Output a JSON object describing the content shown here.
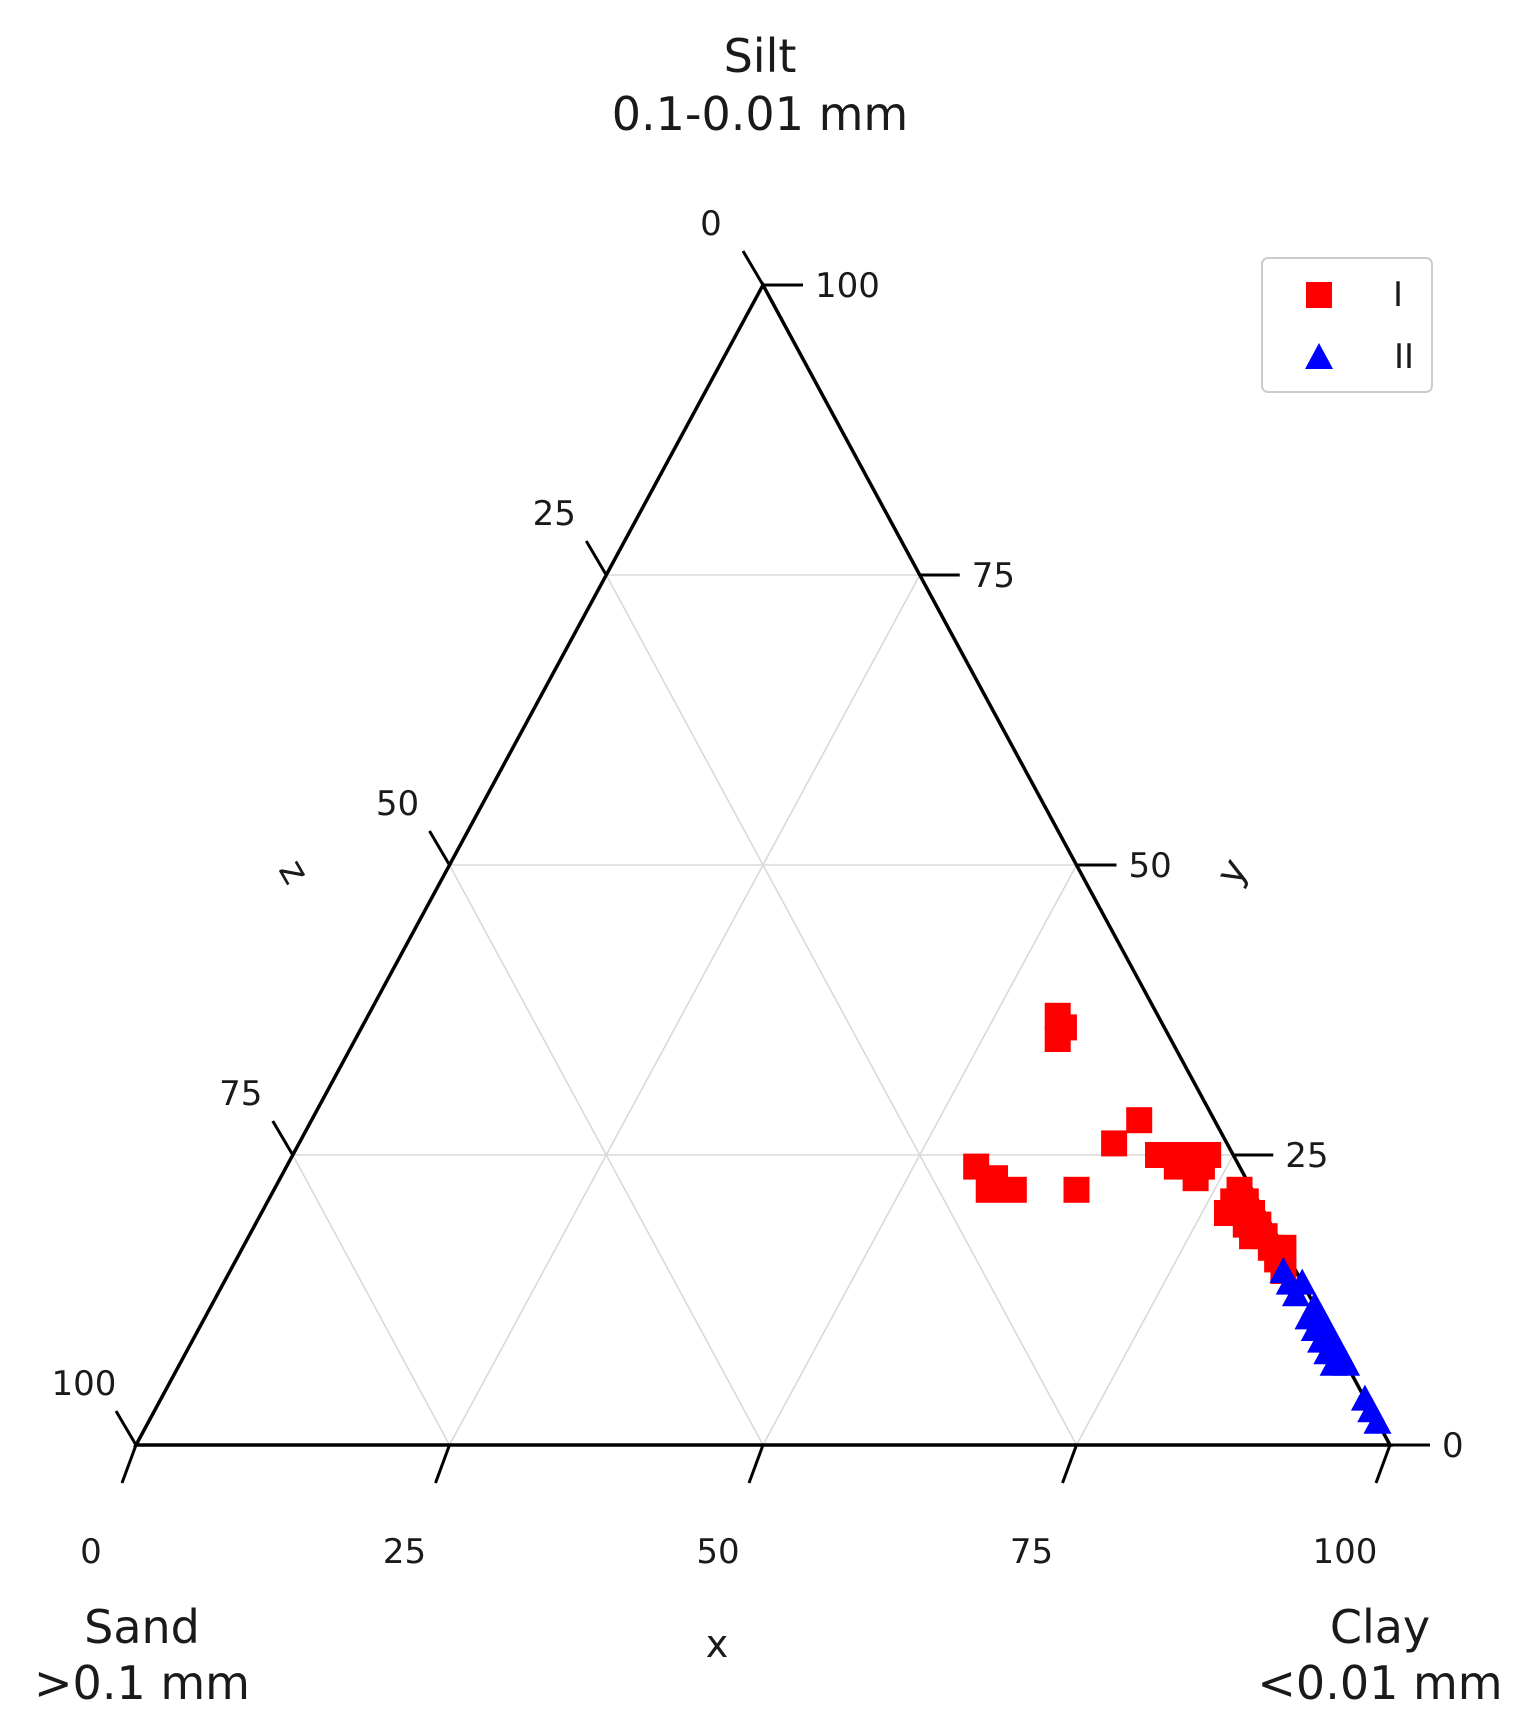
{
  "chart_data": {
    "type": "ternary-scatter",
    "corners": {
      "top": {
        "name": "Silt",
        "range": "0.1-0.01 mm"
      },
      "left": {
        "name": "Sand",
        "range": ">0.1 mm"
      },
      "right": {
        "name": "Clay",
        "range": "<0.01 mm"
      }
    },
    "axes": {
      "x": {
        "label": "x",
        "ticks": [
          "0",
          "25",
          "50",
          "75",
          "100"
        ]
      },
      "y": {
        "label": "y",
        "ticks": [
          "0",
          "25",
          "50",
          "75",
          "100"
        ]
      },
      "z": {
        "label": "z",
        "ticks": [
          "0",
          "25",
          "50",
          "75",
          "100"
        ]
      }
    },
    "grid": true,
    "legend_position": "top-right",
    "colors": {
      "I": "#ff0000",
      "II": "#0000ff"
    },
    "series": [
      {
        "name": "I",
        "marker": "square",
        "points": [
          {
            "y": 37,
            "z": 8
          },
          {
            "y": 36,
            "z": 8
          },
          {
            "y": 35,
            "z": 9
          },
          {
            "y": 28,
            "z": 6
          },
          {
            "y": 26,
            "z": 9
          },
          {
            "y": 25,
            "z": 6
          },
          {
            "y": 25,
            "z": 5
          },
          {
            "y": 25,
            "z": 4
          },
          {
            "y": 25,
            "z": 2
          },
          {
            "y": 24,
            "z": 5
          },
          {
            "y": 24,
            "z": 3
          },
          {
            "y": 23,
            "z": 4
          },
          {
            "y": 22,
            "z": 1
          },
          {
            "y": 21,
            "z": 2
          },
          {
            "y": 21,
            "z": 1
          },
          {
            "y": 20,
            "z": 3
          },
          {
            "y": 20,
            "z": 2
          },
          {
            "y": 20,
            "z": 1
          },
          {
            "y": 19,
            "z": 2
          },
          {
            "y": 19,
            "z": 1
          },
          {
            "y": 18,
            "z": 1
          },
          {
            "y": 18,
            "z": 2
          },
          {
            "y": 17,
            "z": 0
          },
          {
            "y": 17,
            "z": 1
          },
          {
            "y": 16,
            "z": 1
          },
          {
            "y": 15,
            "z": 1
          },
          {
            "y": 24,
            "z": 21
          },
          {
            "y": 23,
            "z": 20
          },
          {
            "y": 22,
            "z": 19
          },
          {
            "y": 22,
            "z": 21
          },
          {
            "y": 22,
            "z": 14
          }
        ]
      },
      {
        "name": "II",
        "marker": "triangle",
        "points": [
          {
            "y": 15,
            "z": 1
          },
          {
            "y": 14,
            "z": 1
          },
          {
            "y": 14,
            "z": 0
          },
          {
            "y": 13,
            "z": 1
          },
          {
            "y": 12,
            "z": 0
          },
          {
            "y": 11,
            "z": 1
          },
          {
            "y": 11,
            "z": 0
          },
          {
            "y": 10,
            "z": 1
          },
          {
            "y": 10,
            "z": 0
          },
          {
            "y": 9,
            "z": 1
          },
          {
            "y": 9,
            "z": 0
          },
          {
            "y": 8,
            "z": 1
          },
          {
            "y": 8,
            "z": 0
          },
          {
            "y": 7,
            "z": 1
          },
          {
            "y": 7,
            "z": 0
          },
          {
            "y": 4,
            "z": 0
          },
          {
            "y": 3,
            "z": 0
          },
          {
            "y": 2,
            "z": 0
          }
        ]
      }
    ]
  }
}
